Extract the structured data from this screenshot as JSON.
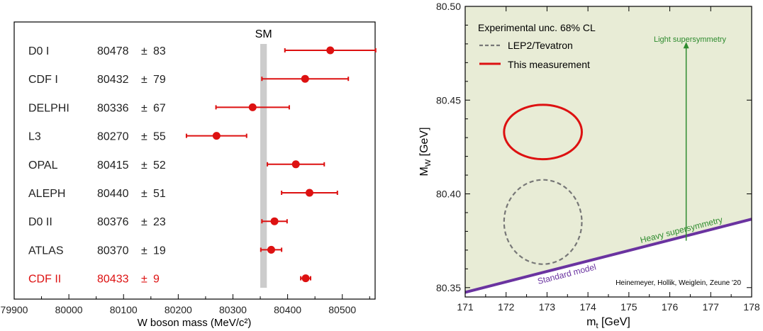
{
  "chart_data": [
    {
      "type": "scatter",
      "xlabel": "W boson mass (MeV/c²)",
      "xlim": [
        79900,
        80560
      ],
      "xticks": [
        "79900",
        "80000",
        "80100",
        "80200",
        "80300",
        "80400",
        "80500"
      ],
      "sm_label": "SM",
      "sm_band": [
        80350,
        80362
      ],
      "highlight_color": "#dd1111",
      "rows": [
        {
          "label": "D0 I",
          "value": "80478",
          "err": "83",
          "x": 80478,
          "e": 83
        },
        {
          "label": "CDF I",
          "value": "80432",
          "err": "79",
          "x": 80432,
          "e": 79
        },
        {
          "label": "DELPHI",
          "value": "80336",
          "err": "67",
          "x": 80336,
          "e": 67
        },
        {
          "label": "L3",
          "value": "80270",
          "err": "55",
          "x": 80270,
          "e": 55
        },
        {
          "label": "OPAL",
          "value": "80415",
          "err": "52",
          "x": 80415,
          "e": 52
        },
        {
          "label": "ALEPH",
          "value": "80440",
          "err": "51",
          "x": 80440,
          "e": 51
        },
        {
          "label": "D0 II",
          "value": "80376",
          "err": "23",
          "x": 80376,
          "e": 23
        },
        {
          "label": "ATLAS",
          "value": "80370",
          "err": "19",
          "x": 80370,
          "e": 19
        },
        {
          "label": "CDF II",
          "value": "80433",
          "err": "9",
          "x": 80433,
          "e": 9,
          "highlight": true
        }
      ]
    },
    {
      "type": "area",
      "xlabel": "m",
      "xlabel_sub": "t",
      "xlabel_unit": " [GeV]",
      "ylabel": "M",
      "ylabel_sub": "W",
      "ylabel_unit": " [GeV]",
      "xlim": [
        171,
        178
      ],
      "ylim": [
        80.345,
        80.5
      ],
      "xticks": [
        "171",
        "172",
        "173",
        "174",
        "175",
        "176",
        "177",
        "178"
      ],
      "yticks": [
        "80.35",
        "80.40",
        "80.45",
        "80.50"
      ],
      "legend": {
        "title": "Experimental unc. 68% CL",
        "dashed": "LEP2/Tevatron",
        "solid": "This measurement"
      },
      "fill_color": "#e8ecd6",
      "sm_line": {
        "x": [
          171,
          178
        ],
        "y": [
          80.3475,
          80.3865
        ],
        "color": "#6a33a0",
        "label": "Standard model"
      },
      "ellipses": [
        {
          "name": "This measurement",
          "cx": 172.9,
          "cy": 80.433,
          "rx": 0.95,
          "ry": 0.0145,
          "style": "solid",
          "color": "#dd1111"
        },
        {
          "name": "LEP2/Tevatron",
          "cx": 172.9,
          "cy": 80.385,
          "rx": 0.95,
          "ry": 0.0225,
          "style": "dashed",
          "color": "#777777"
        }
      ],
      "annotations": {
        "light": "Light supersymmetry",
        "heavy": "Heavy supersymmetry",
        "credit": "Heinemeyer, Hollik, Weiglein, Zeune '20",
        "color": "#2e8b2e"
      },
      "susy_arrow": {
        "x": 176.4,
        "y_from": 80.375,
        "y_to": 80.481
      }
    }
  ]
}
